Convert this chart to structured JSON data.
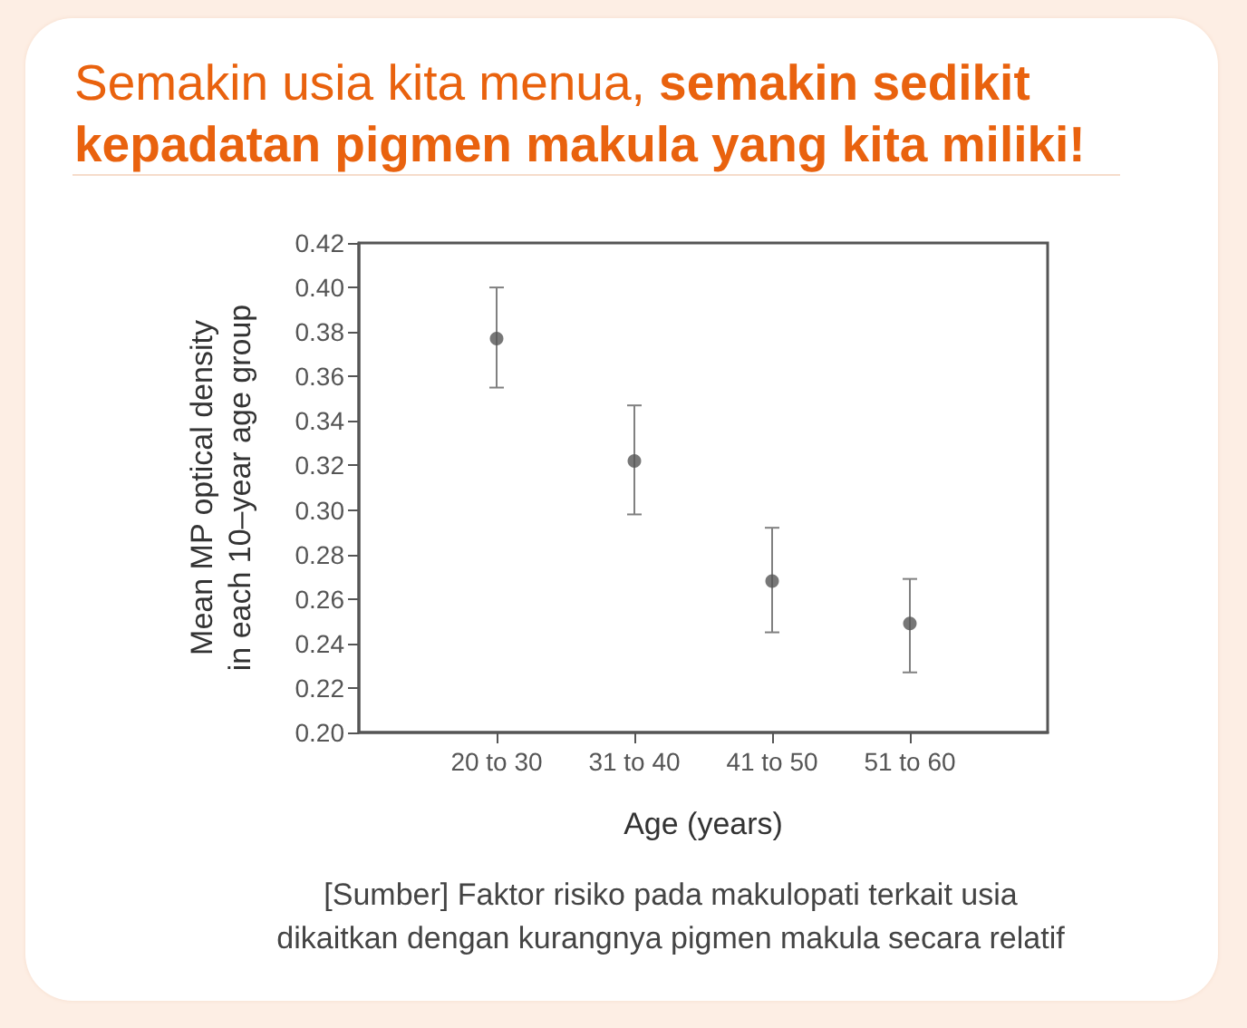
{
  "chart_data": {
    "type": "scatter",
    "title": "Semakin usia kita menua, semakin sedikit kepadatan pigmen makula yang kita miliki!",
    "xlabel": "Age (years)",
    "ylabel": "Mean MP optical density in each 10–year age group",
    "categories": [
      "20 to 30",
      "31 to 40",
      "41 to 50",
      "51 to 60"
    ],
    "values": [
      0.377,
      0.322,
      0.268,
      0.249
    ],
    "color": "#555555",
    "marker": "circle",
    "errors": [
      [
        0.355,
        0.4
      ],
      [
        0.298,
        0.347
      ],
      [
        0.245,
        0.292
      ],
      [
        0.227,
        0.269
      ]
    ],
    "ylim": [
      0.2,
      0.42
    ],
    "yticks": [
      {
        "value": 0.2,
        "label": "0.20"
      },
      0.22,
      0.24,
      0.26,
      0.28,
      {
        "value": 0.3,
        "label": "0.30"
      },
      0.32,
      0.34,
      0.36,
      0.38,
      {
        "value": 0.4,
        "label": "0.40"
      },
      0.42
    ],
    "grid": false,
    "annotations": [
      "[Sumber] Faktor risiko pada makulopati terkait usia dikaitkan dengan kurangnya pigmen makula secara relatif"
    ]
  }
}
